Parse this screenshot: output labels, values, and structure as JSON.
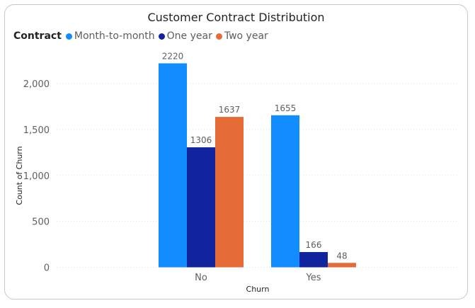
{
  "chart_data": {
    "type": "bar",
    "title": "Customer Contract Distribution",
    "xlabel": "Churn",
    "ylabel": "Count of Churn",
    "legend_title": "Contract",
    "legend_position": "top-left",
    "categories": [
      "No",
      "Yes"
    ],
    "series": [
      {
        "name": "Month-to-month",
        "values": [
          2220,
          1655
        ],
        "color": "#118DFF"
      },
      {
        "name": "One year",
        "values": [
          1306,
          166
        ],
        "color": "#12239E"
      },
      {
        "name": "Two year",
        "values": [
          1637,
          48
        ],
        "color": "#E66C37"
      }
    ],
    "ylim": [
      0,
      2500
    ],
    "yticks": [
      0,
      500,
      1000,
      1500,
      2000
    ],
    "ytick_labels": [
      "0",
      "500",
      "1,000",
      "1,500",
      "2,000"
    ],
    "grid": true,
    "data_labels": true
  }
}
